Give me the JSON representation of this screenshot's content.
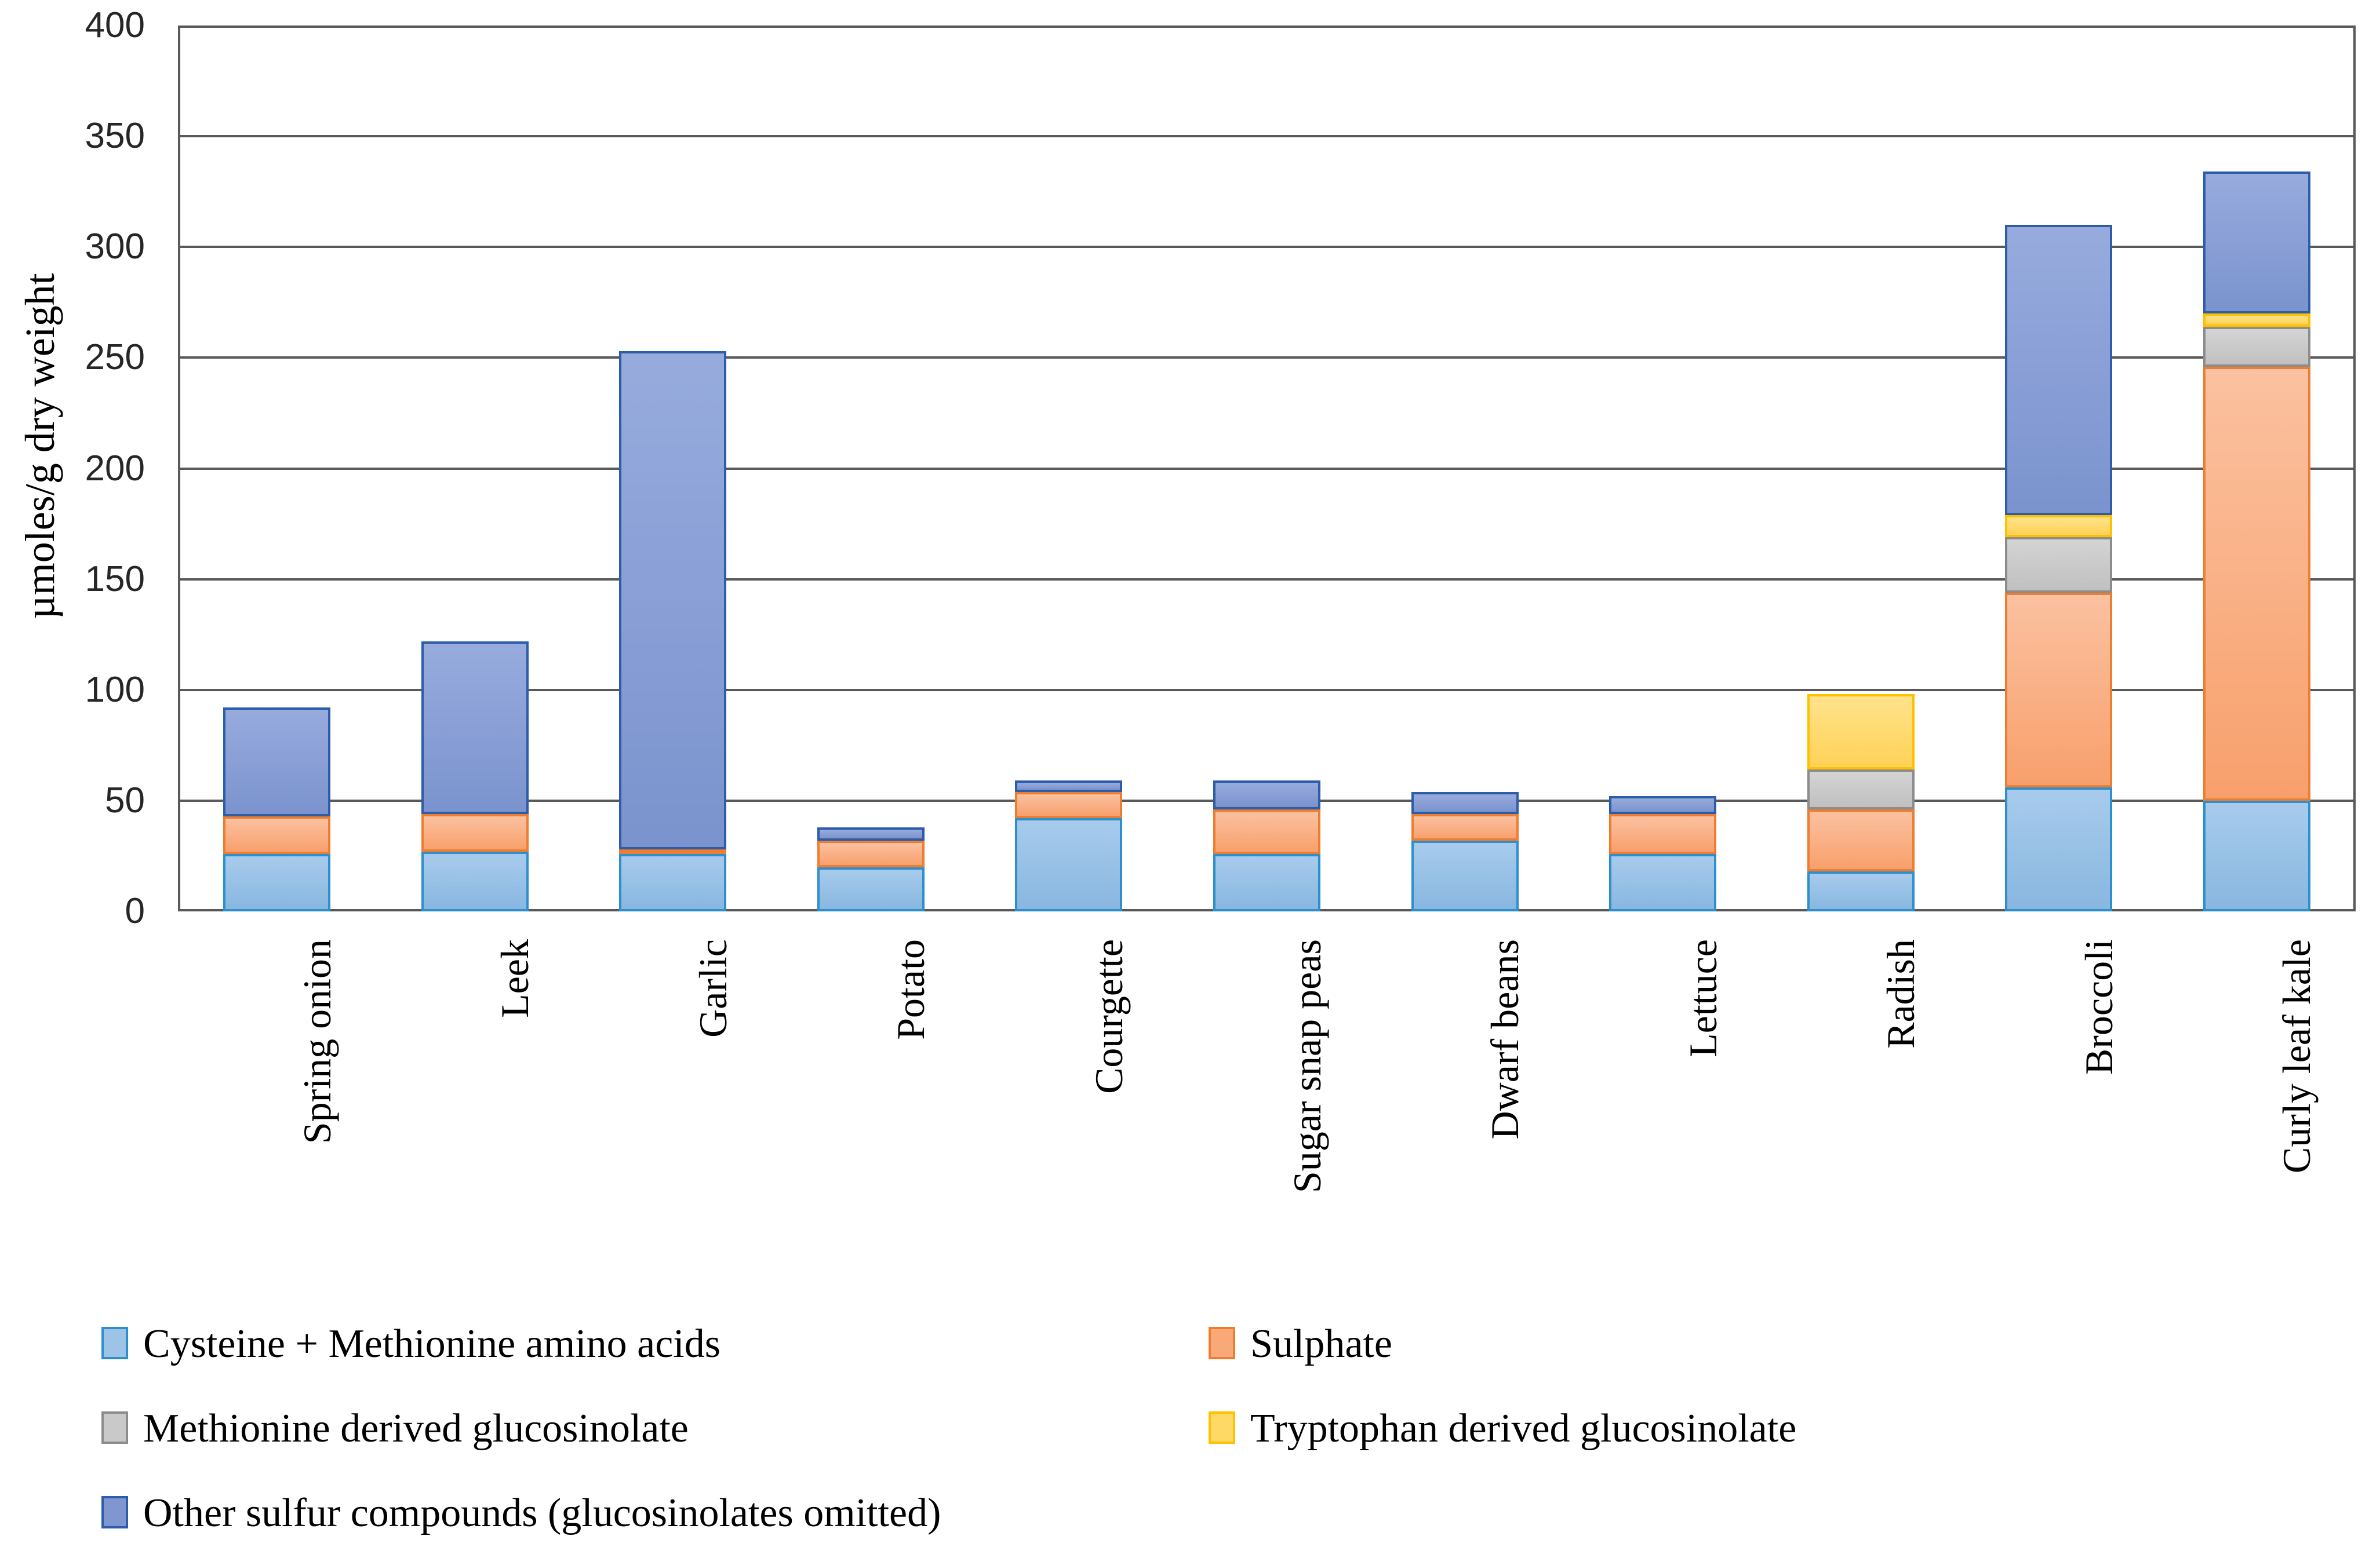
{
  "figure": {
    "y_axis_title": "µmoles/g dry weight"
  },
  "chart_data": {
    "type": "bar",
    "stacked": true,
    "title": "",
    "xlabel": "",
    "ylabel": "µmoles/g dry weight",
    "ylim": [
      0,
      400
    ],
    "yticks": [
      0,
      50,
      100,
      150,
      200,
      250,
      300,
      350,
      400
    ],
    "grid": true,
    "legend_position": "bottom",
    "gridline_color": "#595959",
    "categories": [
      "Spring onion",
      "Leek",
      "Garlic",
      "Potato",
      "Courgette",
      "Sugar snap peas",
      "Dwarf beans",
      "Lettuce",
      "Radish",
      "Broccoli",
      "Curly leaf kale"
    ],
    "series": [
      {
        "name": "Cysteine + Methionine amino acids",
        "color": "#9DC3E6",
        "color_top": "#A8CBEC",
        "color_bottom": "#88B7E0",
        "border": "#2E8FCE",
        "values": [
          26,
          27,
          26,
          20,
          42,
          26,
          32,
          26,
          18,
          56,
          50
        ]
      },
      {
        "name": "Sulphate",
        "color": "#F9A978",
        "color_top": "#FBC1A0",
        "color_bottom": "#F8A06C",
        "border": "#ED7D31",
        "values": [
          17,
          17,
          2,
          12,
          12,
          20,
          12,
          18,
          28,
          88,
          196
        ]
      },
      {
        "name": "Methionine derived glucosinolate",
        "color": "#C9C9C9",
        "color_top": "#D4D4D4",
        "color_bottom": "#C0C0C0",
        "border": "#8C8C8C",
        "values": [
          0,
          0,
          0,
          0,
          0,
          0,
          0,
          0,
          18,
          25,
          18
        ]
      },
      {
        "name": "Tryptophan derived glucosinolate",
        "color": "#FFD966",
        "color_top": "#FFE28C",
        "color_bottom": "#FFD257",
        "border": "#FFC000",
        "values": [
          0,
          0,
          0,
          0,
          0,
          0,
          0,
          0,
          34,
          10,
          6
        ]
      },
      {
        "name": "Other sulfur compounds (glucosinolates omitted)",
        "color": "#8096D0",
        "color_top": "#97ABDD",
        "color_bottom": "#7B93CE",
        "border": "#2D5CA8",
        "values": [
          49,
          78,
          225,
          6,
          5,
          13,
          10,
          8,
          0,
          131,
          64
        ]
      }
    ],
    "totals": [
      92,
      122,
      253,
      38,
      59,
      59,
      54,
      52,
      98,
      310,
      334
    ]
  },
  "legend": {
    "rows": [
      [
        "Cysteine + Methionine amino acids",
        "Sulphate"
      ],
      [
        "Methionine derived glucosinolate",
        "Tryptophan derived glucosinolate"
      ],
      [
        "Other sulfur compounds (glucosinolates omitted)"
      ]
    ]
  }
}
